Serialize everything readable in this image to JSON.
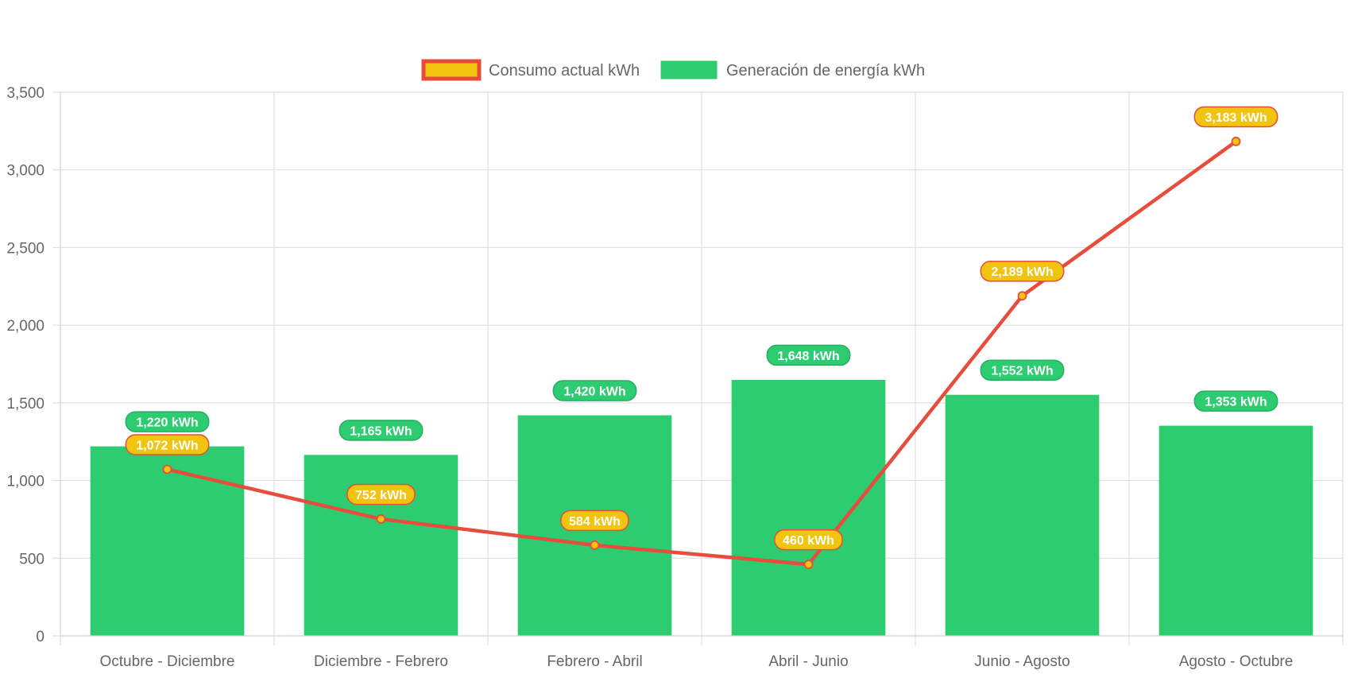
{
  "chart_data": {
    "type": "bar",
    "categories": [
      "Octubre - Diciembre",
      "Diciembre - Febrero",
      "Febrero - Abril",
      "Abril - Junio",
      "Junio - Agosto",
      "Agosto - Octubre"
    ],
    "series": [
      {
        "name": "Generación de energía kWh",
        "type": "bar",
        "color": "#2ecc71",
        "values": [
          1220,
          1165,
          1420,
          1648,
          1552,
          1353
        ],
        "data_labels": [
          "1,220 kWh",
          "1,165 kWh",
          "1,420 kWh",
          "1,648 kWh",
          "1,552 kWh",
          "1,353 kWh"
        ]
      },
      {
        "name": "Consumo actual kWh",
        "type": "line",
        "color": "#e74c3c",
        "point_color": "#f1c40f",
        "values": [
          1072,
          752,
          584,
          460,
          2189,
          3183
        ],
        "data_labels": [
          "1,072 kWh",
          "752 kWh",
          "584 kWh",
          "460 kWh",
          "2,189 kWh",
          "3,183 kWh"
        ]
      }
    ],
    "legend": {
      "placement": "top-center",
      "items": [
        {
          "label": "Consumo actual kWh",
          "fill": "#f1c40f",
          "stroke": "#e74c3c"
        },
        {
          "label": "Generación de energía kWh",
          "fill": "#2ecc71",
          "stroke": "#2ecc71"
        }
      ]
    },
    "ylim": [
      0,
      3500
    ],
    "y_ticks": [
      0,
      500,
      1000,
      1500,
      2000,
      2500,
      3000,
      3500
    ],
    "y_tick_labels": [
      "0",
      "500",
      "1,000",
      "1,500",
      "2,000",
      "2,500",
      "3,000",
      "3,500"
    ],
    "grid": true,
    "title": "",
    "xlabel": "",
    "ylabel": ""
  }
}
